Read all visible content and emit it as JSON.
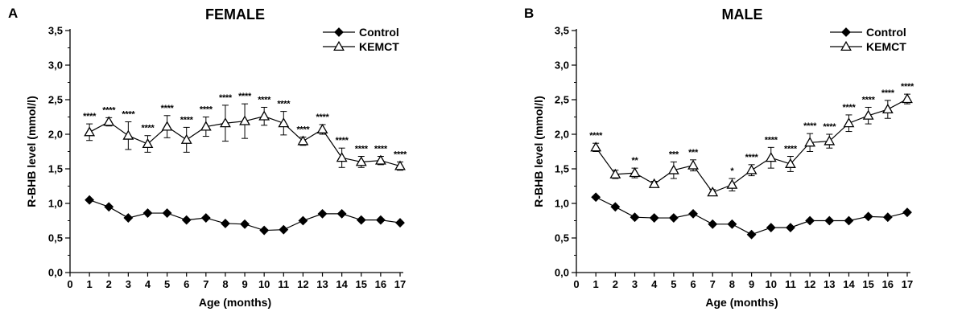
{
  "chart_data": [
    {
      "type": "line",
      "panel": "A",
      "title": "FEMALE",
      "xlabel": "Age (months)",
      "ylabel": "R-BHB level (mmol/l)",
      "xlim": [
        0,
        17
      ],
      "ylim": [
        0,
        3.5
      ],
      "x_ticks": [
        "0",
        "1",
        "2",
        "3",
        "4",
        "5",
        "6",
        "7",
        "8",
        "9",
        "10",
        "11",
        "12",
        "13",
        "14",
        "15",
        "16",
        "17"
      ],
      "y_ticks": [
        "0,0",
        "0,5",
        "1,0",
        "1,5",
        "2,0",
        "2,5",
        "3,0",
        "3,5"
      ],
      "y_tick_values": [
        0,
        0.5,
        1.0,
        1.5,
        2.0,
        2.5,
        3.0,
        3.5
      ],
      "grid": false,
      "legend_position": "top-right",
      "x": [
        1,
        2,
        3,
        4,
        5,
        6,
        7,
        8,
        9,
        10,
        11,
        12,
        13,
        14,
        15,
        16,
        17
      ],
      "series": [
        {
          "name": "Control",
          "marker": "filled-diamond",
          "values": [
            1.05,
            0.95,
            0.79,
            0.86,
            0.86,
            0.76,
            0.79,
            0.71,
            0.7,
            0.61,
            0.62,
            0.75,
            0.85,
            0.85,
            0.76,
            0.76,
            0.72
          ],
          "errors": [
            0.03,
            0.03,
            0.03,
            0.03,
            0.03,
            0.03,
            0.03,
            0.03,
            0.03,
            0.03,
            0.03,
            0.03,
            0.03,
            0.03,
            0.03,
            0.03,
            0.03
          ]
        },
        {
          "name": "KEMCT",
          "marker": "open-triangle",
          "values": [
            2.03,
            2.18,
            1.98,
            1.86,
            2.11,
            1.92,
            2.11,
            2.16,
            2.19,
            2.26,
            2.16,
            1.9,
            2.07,
            1.66,
            1.6,
            1.62,
            1.54
          ],
          "errors": [
            0.12,
            0.06,
            0.2,
            0.12,
            0.16,
            0.18,
            0.14,
            0.26,
            0.25,
            0.13,
            0.17,
            0.06,
            0.07,
            0.14,
            0.08,
            0.06,
            0.06
          ],
          "significance": [
            "****",
            "****",
            "****",
            "****",
            "****",
            "****",
            "****",
            "****",
            "****",
            "****",
            "****",
            "****",
            "****",
            "****",
            "****",
            "****",
            "****"
          ]
        }
      ]
    },
    {
      "type": "line",
      "panel": "B",
      "title": "MALE",
      "xlabel": "Age (months)",
      "ylabel": "R-BHB level (mmol/l)",
      "xlim": [
        0,
        17
      ],
      "ylim": [
        0,
        3.5
      ],
      "x_ticks": [
        "0",
        "1",
        "2",
        "3",
        "4",
        "5",
        "6",
        "7",
        "8",
        "9",
        "10",
        "11",
        "12",
        "13",
        "14",
        "15",
        "16",
        "17"
      ],
      "y_ticks": [
        "0,0",
        "0,5",
        "1,0",
        "1,5",
        "2,0",
        "2,5",
        "3,0",
        "3,5"
      ],
      "y_tick_values": [
        0,
        0.5,
        1.0,
        1.5,
        2.0,
        2.5,
        3.0,
        3.5
      ],
      "grid": false,
      "legend_position": "top-right",
      "x": [
        1,
        2,
        3,
        4,
        5,
        6,
        7,
        8,
        9,
        10,
        11,
        12,
        13,
        14,
        15,
        16,
        17
      ],
      "series": [
        {
          "name": "Control",
          "marker": "filled-diamond",
          "values": [
            1.09,
            0.95,
            0.8,
            0.79,
            0.79,
            0.85,
            0.7,
            0.7,
            0.55,
            0.65,
            0.65,
            0.75,
            0.75,
            0.75,
            0.81,
            0.8,
            0.87
          ],
          "errors": [
            0.03,
            0.03,
            0.03,
            0.03,
            0.03,
            0.03,
            0.03,
            0.03,
            0.03,
            0.03,
            0.03,
            0.03,
            0.03,
            0.03,
            0.03,
            0.03,
            0.03
          ]
        },
        {
          "name": "KEMCT",
          "marker": "open-triangle",
          "values": [
            1.81,
            1.42,
            1.44,
            1.28,
            1.48,
            1.55,
            1.16,
            1.27,
            1.48,
            1.66,
            1.57,
            1.88,
            1.9,
            2.16,
            2.27,
            2.36,
            2.51
          ],
          "errors": [
            0.06,
            0.06,
            0.07,
            0.04,
            0.12,
            0.08,
            0.04,
            0.09,
            0.08,
            0.15,
            0.11,
            0.13,
            0.1,
            0.12,
            0.12,
            0.13,
            0.07
          ],
          "significance": [
            "****",
            "",
            "**",
            "",
            "***",
            "***",
            "",
            "*",
            "****",
            "****",
            "****",
            "****",
            "****",
            "****",
            "****",
            "****",
            "****"
          ]
        }
      ]
    }
  ]
}
